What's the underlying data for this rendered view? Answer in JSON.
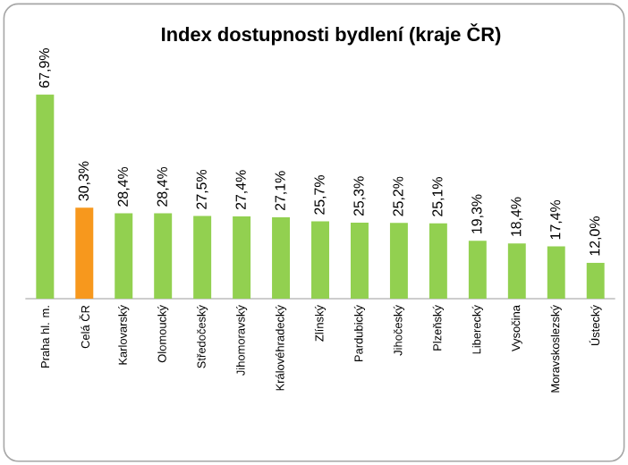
{
  "chart_data": {
    "type": "bar",
    "title": "Index dostupnosti bydlení (kraje ČR)",
    "categories": [
      "Praha hl. m.",
      "Celá ČR",
      "Karlovarský",
      "Olomoucký",
      "Středočeský",
      "Jihomoravský",
      "Královéhradecký",
      "Zlínský",
      "Pardubický",
      "Jihočeský",
      "Plzeňský",
      "Liberecký",
      "Vysočina",
      "Moravskoslezský",
      "Ústecký"
    ],
    "values": [
      67.9,
      30.3,
      28.4,
      28.4,
      27.5,
      27.4,
      27.1,
      25.7,
      25.3,
      25.2,
      25.1,
      19.3,
      18.4,
      17.4,
      12.0
    ],
    "colors": [
      "#92d050",
      "#f7981d",
      "#92d050",
      "#92d050",
      "#92d050",
      "#92d050",
      "#92d050",
      "#92d050",
      "#92d050",
      "#92d050",
      "#92d050",
      "#92d050",
      "#92d050",
      "#92d050",
      "#92d050"
    ],
    "value_labels": [
      "67,9%",
      "30,3%",
      "28,4%",
      "28,4%",
      "27,5%",
      "27,4%",
      "27,1%",
      "25,7%",
      "25,3%",
      "25,2%",
      "25,1%",
      "19,3%",
      "18,4%",
      "17,4%",
      "12,0%"
    ]
  }
}
